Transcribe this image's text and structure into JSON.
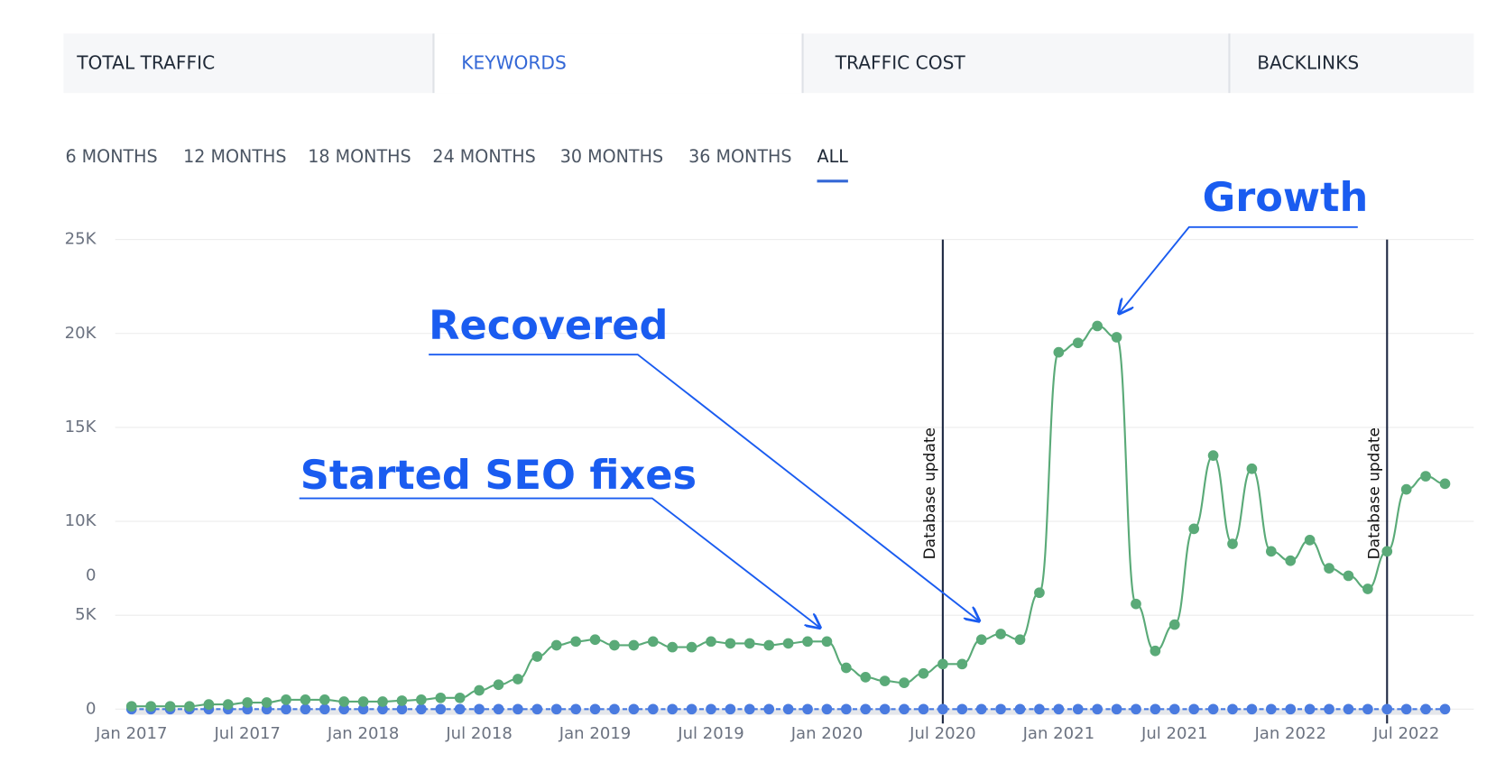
{
  "tabs": {
    "items": [
      "TOTAL TRAFFIC",
      "KEYWORDS",
      "TRAFFIC COST",
      "BACKLINKS"
    ],
    "active": "KEYWORDS"
  },
  "ranges": {
    "items": [
      "6 MONTHS",
      "12 MONTHS",
      "18 MONTHS",
      "24 MONTHS",
      "30 MONTHS",
      "36 MONTHS",
      "ALL"
    ],
    "active": "ALL"
  },
  "chart_data": {
    "type": "line",
    "categories": [
      "Jan 2017",
      null,
      null,
      null,
      null,
      null,
      "Jul 2017",
      null,
      null,
      null,
      null,
      null,
      "Jan 2018",
      null,
      null,
      null,
      null,
      null,
      "Jul 2018",
      null,
      null,
      null,
      null,
      null,
      "Jan 2019",
      null,
      null,
      null,
      null,
      null,
      "Jul 2019",
      null,
      null,
      null,
      null,
      null,
      "Jan 2020",
      null,
      null,
      null,
      null,
      null,
      "Jul 2020",
      null,
      null,
      null,
      null,
      null,
      "Jan 2021",
      null,
      null,
      null,
      null,
      null,
      "Jul 2021",
      null,
      null,
      null,
      null,
      null,
      "Jan 2022",
      null,
      null,
      null,
      null,
      null,
      "Jul 2022",
      null,
      null
    ],
    "series": [
      {
        "color": "#5aaa78",
        "values": [
          150,
          150,
          150,
          150,
          250,
          250,
          350,
          350,
          500,
          500,
          500,
          400,
          400,
          400,
          450,
          500,
          600,
          600,
          1000,
          1300,
          1600,
          2800,
          3400,
          3600,
          3700,
          3400,
          3400,
          3600,
          3300,
          3300,
          3600,
          3500,
          3500,
          3400,
          3500,
          3600,
          3600,
          2200,
          1700,
          1500,
          1400,
          1900,
          2400,
          2400,
          3700,
          4000,
          3700,
          6200,
          19000,
          19500,
          20400,
          19800,
          5600,
          3100,
          4500,
          9600,
          13500,
          8800,
          12800,
          8400,
          7900,
          9000,
          7500,
          7100,
          6400,
          8400,
          11700,
          12400,
          12000
        ]
      },
      {
        "color": "#4a7be0",
        "values": [
          0,
          0,
          0,
          0,
          0,
          0,
          0,
          0,
          0,
          0,
          0,
          0,
          0,
          0,
          0,
          0,
          0,
          0,
          0,
          0,
          0,
          0,
          0,
          0,
          0,
          0,
          0,
          0,
          0,
          0,
          0,
          0,
          0,
          0,
          0,
          0,
          0,
          0,
          0,
          0,
          0,
          0,
          0,
          0,
          0,
          0,
          0,
          0,
          0,
          0,
          0,
          0,
          0,
          0,
          0,
          0,
          0,
          0,
          0,
          0,
          0,
          0,
          0,
          0,
          0,
          0,
          0,
          0,
          0
        ]
      }
    ],
    "ylim": [
      0,
      25000
    ],
    "yticks": [
      0,
      {
        "value": 5000,
        "label": "5K"
      },
      {
        "value": 10000,
        "label": "10K"
      },
      {
        "value": 15000,
        "label": "15K"
      },
      {
        "value": 20000,
        "label": "20K"
      },
      {
        "value": 25000,
        "label": "25K"
      }
    ],
    "grid": true,
    "annotations": [
      {
        "text": "Growth"
      },
      {
        "text": "Recovered"
      },
      {
        "text": "Started SEO fixes"
      },
      {
        "text": "Database update"
      },
      {
        "text": "Database update"
      },
      {
        "text": "0"
      }
    ]
  }
}
